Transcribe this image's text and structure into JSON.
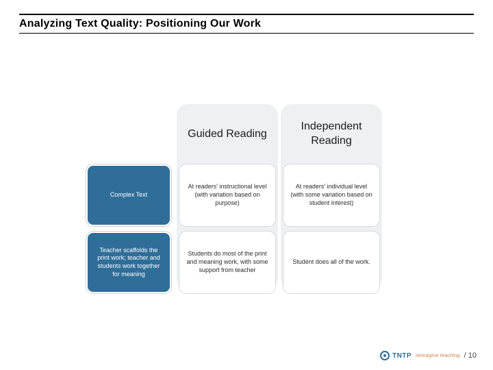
{
  "title": "Analyzing Text Quality: Positioning Our Work",
  "columns": {
    "col1_header": "Guided Reading",
    "col2_header": "Independent Reading"
  },
  "rows": {
    "r1_label": "Complex Text",
    "r1_c1": "At readers' instructional level (with variation based on purpose)",
    "r1_c2": "At readers' individual level (with some variation based on student interest)",
    "r2_label": "Teacher scaffolds the print work; teacher and students work together for meaning",
    "r2_c1": "Students do most of the print and meaning work, with some support from teacher",
    "r2_c2": "Student does all of the work."
  },
  "footer": {
    "logo_text": "TNTP",
    "tagline": "reimagine teaching",
    "page": "/ 10"
  },
  "colors": {
    "blue": "#2f6e99",
    "col_bg": "#eef0f2",
    "text": "#1a1a1a"
  }
}
